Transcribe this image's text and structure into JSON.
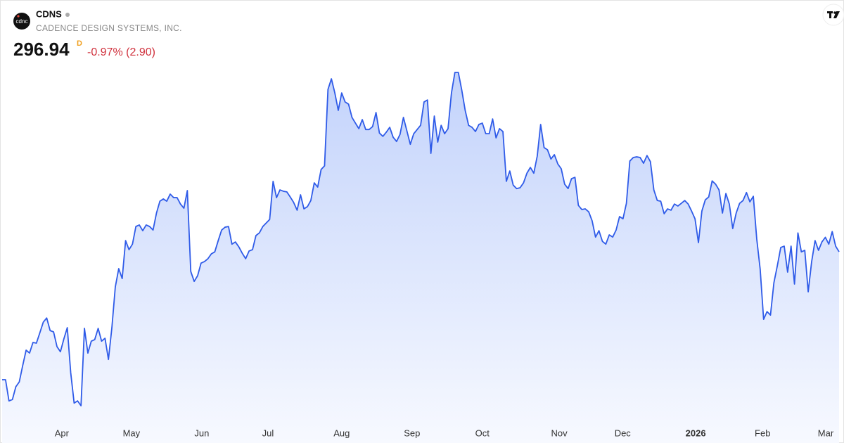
{
  "chart_data": {
    "type": "line",
    "logo": "cdnc",
    "title": "CDNS",
    "subtitle": "CADENCE DESIGN SYSTEMS, INC.",
    "price": "296.94",
    "price_flag": "D",
    "change": "-0.97% (2.90)",
    "color": "#2f5be8",
    "values": [
      238.9,
      238.9,
      229.3,
      229.9,
      235.7,
      237.9,
      245.3,
      252.3,
      251.0,
      255.8,
      255.5,
      260.2,
      265.0,
      266.9,
      261.2,
      260.6,
      253.9,
      251.6,
      257.4,
      262.5,
      242.1,
      228.3,
      229.3,
      227.1,
      262.2,
      251.0,
      256.4,
      257.1,
      262.2,
      256.4,
      257.7,
      248.1,
      262.5,
      281.0,
      289.3,
      284.8,
      302.0,
      297.9,
      300.4,
      308.4,
      309.1,
      306.5,
      309.1,
      308.4,
      306.8,
      314.5,
      319.9,
      320.9,
      319.9,
      323.1,
      321.5,
      321.5,
      318.6,
      316.7,
      324.7,
      288.0,
      283.5,
      286.1,
      291.8,
      292.5,
      293.8,
      296.0,
      296.9,
      302.0,
      306.8,
      308.1,
      308.4,
      300.4,
      301.4,
      299.2,
      296.3,
      293.8,
      297.3,
      297.9,
      304.3,
      305.5,
      308.4,
      310.0,
      311.6,
      328.9,
      321.5,
      325.0,
      324.4,
      324.1,
      321.8,
      319.3,
      315.8,
      322.8,
      316.4,
      317.4,
      320.2,
      328.2,
      326.3,
      334.3,
      335.9,
      370.6,
      375.4,
      369.0,
      361.1,
      369.0,
      364.9,
      363.9,
      357.9,
      355.3,
      352.8,
      356.9,
      352.4,
      352.4,
      353.7,
      360.1,
      350.8,
      349.3,
      351.2,
      353.4,
      348.9,
      347.0,
      350.2,
      357.9,
      351.8,
      345.7,
      350.5,
      352.4,
      354.3,
      364.9,
      365.8,
      341.6,
      358.5,
      346.7,
      354.3,
      350.5,
      352.8,
      369.0,
      378.3,
      378.3,
      370.3,
      361.1,
      354.3,
      353.4,
      351.5,
      354.7,
      355.3,
      350.5,
      350.5,
      357.2,
      348.6,
      352.8,
      351.5,
      328.9,
      333.6,
      327.2,
      325.6,
      326.0,
      328.2,
      332.6,
      335.2,
      332.6,
      340.3,
      354.7,
      344.2,
      343.2,
      339.0,
      341.0,
      336.8,
      334.6,
      327.6,
      325.6,
      330.1,
      330.7,
      318.0,
      316.1,
      316.4,
      315.1,
      311.0,
      303.6,
      306.5,
      301.7,
      300.4,
      304.6,
      303.6,
      306.8,
      312.9,
      311.9,
      318.9,
      338.1,
      339.7,
      340.0,
      339.7,
      337.1,
      340.6,
      337.8,
      325.0,
      320.2,
      319.9,
      314.2,
      316.4,
      315.8,
      318.6,
      317.7,
      318.9,
      320.2,
      318.6,
      315.4,
      311.9,
      301.1,
      315.4,
      320.5,
      321.8,
      329.1,
      327.6,
      325.0,
      314.5,
      323.4,
      318.6,
      307.5,
      314.5,
      318.9,
      320.2,
      323.8,
      319.6,
      322.1,
      302.7,
      289.0,
      266.3,
      269.8,
      268.2,
      282.9,
      290.6,
      298.9,
      299.5,
      287.7,
      299.5,
      282.3,
      305.5,
      296.9,
      297.6,
      278.8,
      292.4,
      302.0,
      297.6,
      301.4,
      303.5,
      300.4,
      306.1,
      299.5,
      296.94
    ],
    "xticks": [
      {
        "value": 17.4,
        "label": "Apr"
      },
      {
        "value": 37.7,
        "label": "May"
      },
      {
        "value": 58.2,
        "label": "Jun"
      },
      {
        "value": 77.5,
        "label": "Jul"
      },
      {
        "value": 99.0,
        "label": "Aug"
      },
      {
        "value": 119.5,
        "label": "Sep"
      },
      {
        "value": 140.0,
        "label": "Oct"
      },
      {
        "value": 162.4,
        "label": "Nov"
      },
      {
        "value": 180.9,
        "label": "Dec"
      },
      {
        "value": 202.2,
        "label": "2026",
        "bold": true
      },
      {
        "value": 221.7,
        "label": "Feb"
      },
      {
        "value": 240.1,
        "label": "Mar"
      }
    ]
  }
}
